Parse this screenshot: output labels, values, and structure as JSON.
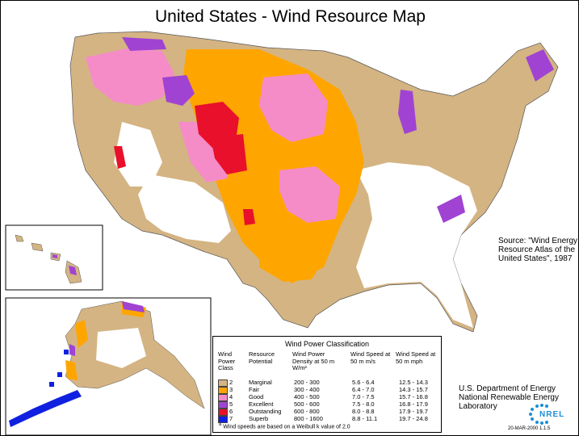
{
  "title": "United States - Wind Resource Map",
  "source_note": "Source:  \"Wind Energy Resource Atlas of the United States\", 1987",
  "agency_line1": "U.S. Department of Energy",
  "agency_line2": "National Renewable Energy Laboratory",
  "logo_text": "NREL",
  "date_code": "20-MAR-2000 1.1.5",
  "colors": {
    "class2": "#d4b483",
    "class3": "#ffa500",
    "class4": "#f58cc8",
    "class5": "#a043d2",
    "class6": "#e8102a",
    "class7": "#1020e0"
  },
  "legend": {
    "title": "Wind Power Classification",
    "headers": {
      "class": "Wind Power Class",
      "potential": "Resource Potential",
      "density": "Wind Power Density at 50 m W/m²",
      "speed_ms": "Wind Speed at 50 m m/s",
      "speed_mph": "Wind Speed at 50 m mph"
    },
    "rows": [
      {
        "cls": "2",
        "potential": "Marginal",
        "density": "200 - 300",
        "ms": "5.6 - 6.4",
        "mph": "12.5 - 14.3",
        "color": "#d4b483"
      },
      {
        "cls": "3",
        "potential": "Fair",
        "density": "300 - 400",
        "ms": "6.4 - 7.0",
        "mph": "14.3 - 15.7",
        "color": "#ffa500"
      },
      {
        "cls": "4",
        "potential": "Good",
        "density": "400 - 500",
        "ms": "7.0 - 7.5",
        "mph": "15.7 - 16.8",
        "color": "#f58cc8"
      },
      {
        "cls": "5",
        "potential": "Excellent",
        "density": "500 - 600",
        "ms": "7.5 - 8.0",
        "mph": "16.8 - 17.9",
        "color": "#a043d2"
      },
      {
        "cls": "6",
        "potential": "Outstanding",
        "density": "600 - 800",
        "ms": "8.0 - 8.8",
        "mph": "17.9 - 19.7",
        "color": "#e8102a"
      },
      {
        "cls": "7",
        "potential": "Superb",
        "density": "800 - 1600",
        "ms": "8.8 - 11.1",
        "mph": "19.7 - 24.8",
        "color": "#1020e0"
      }
    ],
    "footnote_mark": "a",
    "footnote": "Wind speeds are based on a Weibull k value of 2.0"
  }
}
